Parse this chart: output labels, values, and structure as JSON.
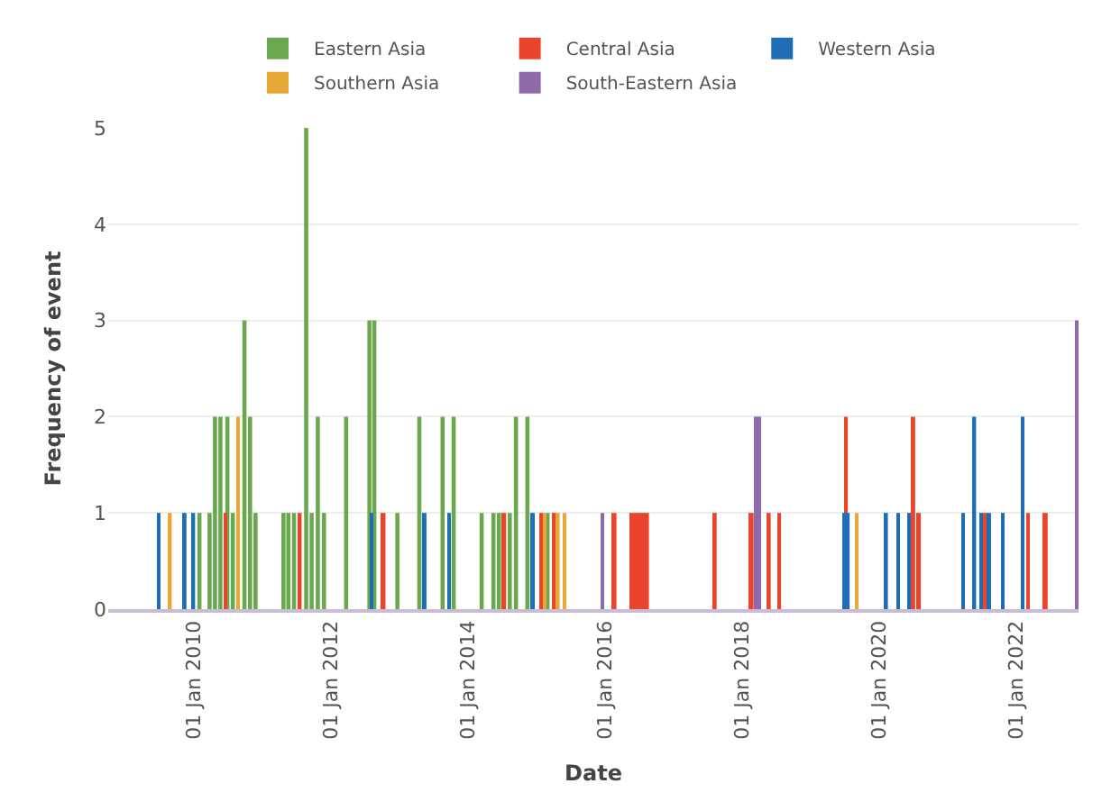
{
  "chart_data": {
    "type": "bar",
    "xlabel": "Date",
    "ylabel": "Frequency of event",
    "xlim": [
      "2008-10-01",
      "2022-11-28"
    ],
    "xticks": [
      {
        "value": "2010-01-01",
        "label": "01 Jan 2010"
      },
      {
        "value": "2012-01-01",
        "label": "01 Jan 2012"
      },
      {
        "value": "2014-01-01",
        "label": "01 Jan 2014"
      },
      {
        "value": "2016-01-01",
        "label": "01 Jan 2016"
      },
      {
        "value": "2018-01-01",
        "label": "01 Jan 2018"
      },
      {
        "value": "2020-01-01",
        "label": "01 Jan 2020"
      },
      {
        "value": "2022-01-01",
        "label": "01 Jan 2022"
      }
    ],
    "ylim": [
      0,
      5
    ],
    "yticks": [
      0,
      1,
      2,
      3,
      4,
      5
    ],
    "grid": "y",
    "legend": "top",
    "series": [
      {
        "name": "Eastern Asia",
        "color": "#6aa84f",
        "x": [
          "2010-01-30",
          "2010-03-25",
          "2010-04-23",
          "2010-05-22",
          "2010-06-28",
          "2010-07-27",
          "2010-09-27",
          "2010-10-27",
          "2010-11-25",
          "2011-04-23",
          "2011-05-19",
          "2011-06-18",
          "2011-08-22",
          "2011-09-20",
          "2011-10-23",
          "2011-11-25",
          "2012-03-22",
          "2012-07-24",
          "2012-08-19",
          "2012-12-20",
          "2013-04-16",
          "2013-08-18",
          "2013-10-16",
          "2014-03-14",
          "2014-05-16",
          "2014-06-14",
          "2014-08-11",
          "2014-09-13",
          "2014-11-13",
          "2015-02-28"
        ],
        "values": [
          1,
          1,
          2,
          2,
          2,
          1,
          3,
          2,
          1,
          1,
          1,
          1,
          5,
          1,
          2,
          1,
          2,
          3,
          3,
          1,
          2,
          2,
          2,
          1,
          1,
          1,
          1,
          2,
          2,
          1
        ]
      },
      {
        "name": "Central Asia",
        "color": "#e8452c",
        "x": [
          "2010-06-18",
          "2011-07-19",
          "2012-10-08",
          "2014-07-13",
          "2015-01-26",
          "2015-04-08",
          "2016-02-21",
          "2016-05-20",
          "2016-06-10",
          "2016-07-01",
          "2016-07-22",
          "2016-08-12",
          "2017-08-08",
          "2018-02-21",
          "2018-05-23",
          "2018-07-17",
          "2019-07-08",
          "2020-07-01",
          "2020-07-31",
          "2021-07-19",
          "2022-03-04",
          "2022-06-07"
        ],
        "values": [
          1,
          1,
          1,
          1,
          1,
          1,
          1,
          1,
          1,
          1,
          1,
          1,
          1,
          1,
          1,
          1,
          2,
          2,
          1,
          1,
          1,
          1
        ]
      },
      {
        "name": "Western Asia",
        "color": "#1f6db5",
        "x": [
          "2009-06-28",
          "2009-11-14",
          "2009-12-30",
          "2012-08-03",
          "2013-05-16",
          "2013-09-20",
          "2014-12-14",
          "2019-07-01",
          "2019-07-19",
          "2020-02-08",
          "2020-04-10",
          "2020-06-06",
          "2021-03-24",
          "2021-05-23",
          "2021-06-28",
          "2021-08-11",
          "2021-10-19",
          "2022-02-03"
        ],
        "values": [
          1,
          1,
          1,
          1,
          1,
          1,
          1,
          1,
          1,
          1,
          1,
          1,
          1,
          2,
          1,
          1,
          1,
          2
        ]
      },
      {
        "name": "Southern Asia",
        "color": "#e8a838",
        "x": [
          "2009-08-29",
          "2010-08-25",
          "2015-02-13",
          "2015-04-27",
          "2015-05-27",
          "2019-09-02"
        ],
        "values": [
          1,
          2,
          1,
          1,
          1,
          1
        ]
      },
      {
        "name": "South-Eastern Asia",
        "color": "#8e6ba8",
        "x": [
          "2015-12-20",
          "2018-03-14",
          "2018-04-05",
          "2022-11-20"
        ],
        "values": [
          1,
          2,
          2,
          3
        ]
      }
    ]
  }
}
